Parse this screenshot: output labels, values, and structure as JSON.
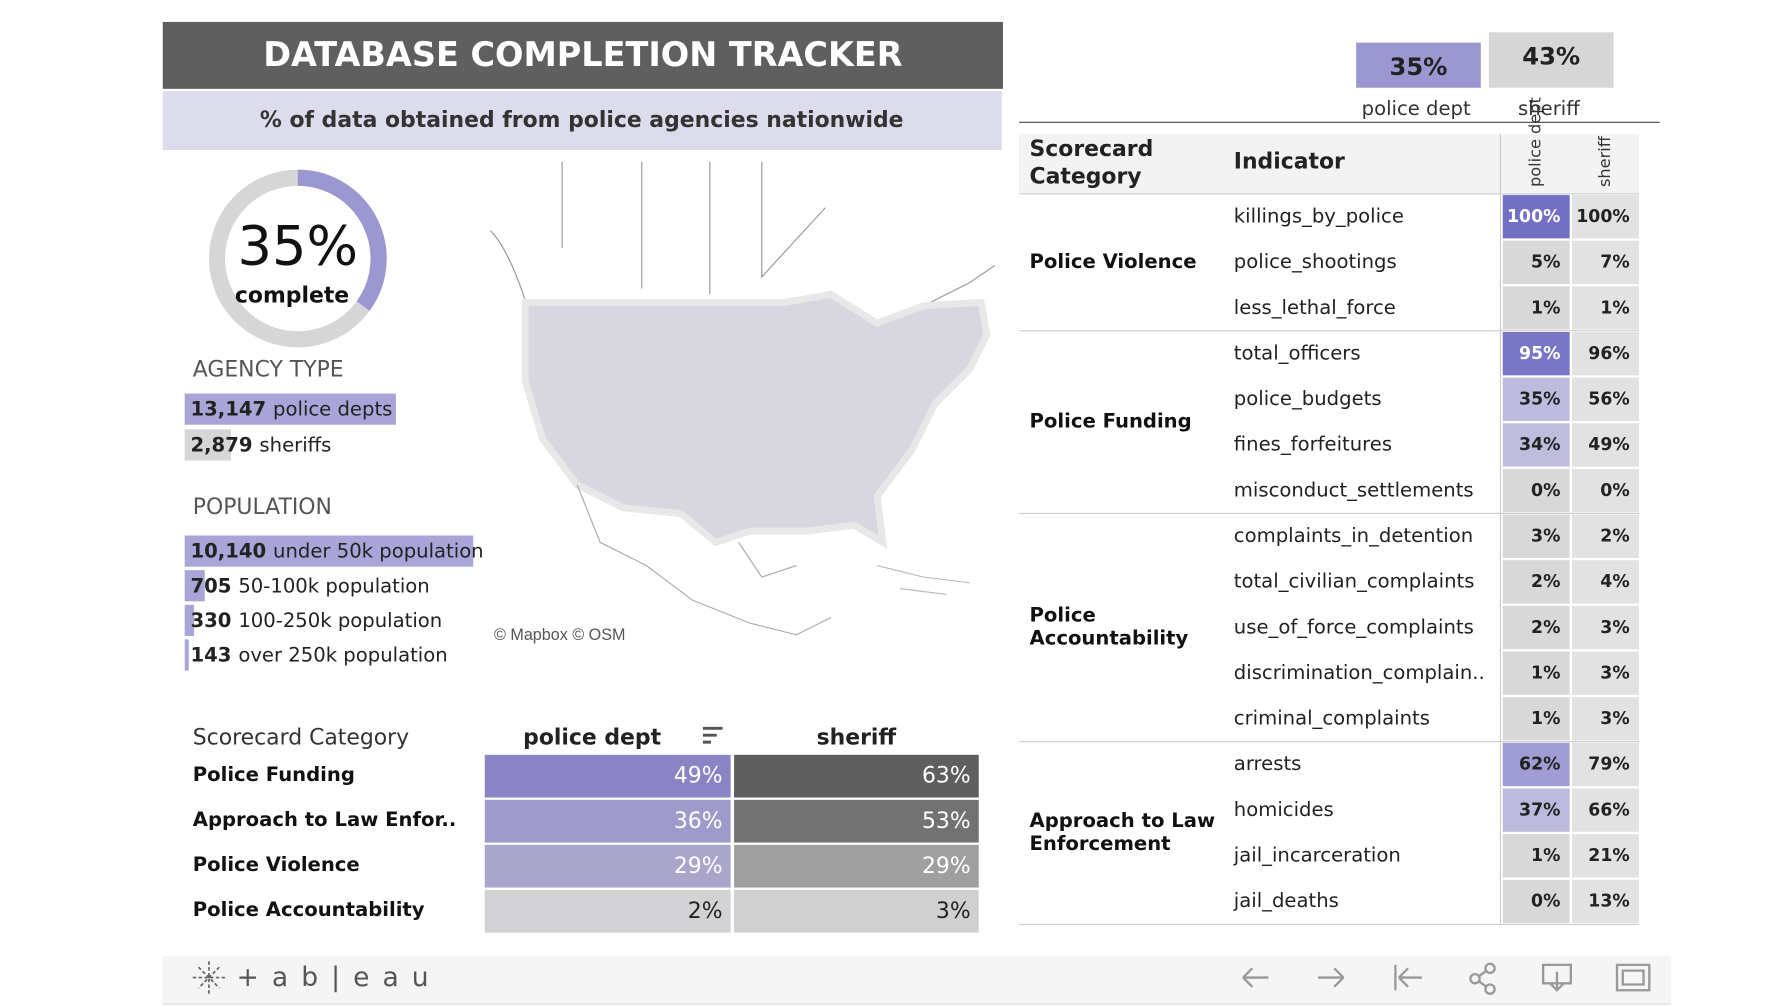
{
  "header": {
    "title": "DATABASE COMPLETION TRACKER",
    "subtitle": "% of data obtained from police agencies nationwide"
  },
  "summary": {
    "items": [
      {
        "name": "police dept",
        "value": {
          "value": 35,
          "label": "35%"
        }
      },
      {
        "name": "sheriff",
        "value": {
          "value": 43,
          "label": "43%"
        }
      }
    ]
  },
  "donut": {
    "value": {
      "value": 35,
      "label": "35%"
    },
    "caption": "complete"
  },
  "agency_type": {
    "title": "AGENCY TYPE",
    "items": [
      {
        "count": {
          "value": 13147,
          "label": "13,147"
        },
        "label": "police depts"
      },
      {
        "count": {
          "value": 2879,
          "label": "2,879"
        },
        "label": "sheriffs"
      }
    ]
  },
  "population": {
    "title": "POPULATION",
    "items": [
      {
        "count": {
          "value": 10140,
          "label": "10,140"
        },
        "label": "under 50k population"
      },
      {
        "count": {
          "value": 705,
          "label": "705"
        },
        "label": "50-100k population"
      },
      {
        "count": {
          "value": 330,
          "label": "330"
        },
        "label": "100-250k population"
      },
      {
        "count": {
          "value": 143,
          "label": "143"
        },
        "label": "over 250k population"
      }
    ]
  },
  "map": {
    "attribution": "© Mapbox  © OSM"
  },
  "category_table": {
    "headers": [
      "Scorecard Category",
      "police dept",
      "sheriff"
    ],
    "rows": [
      {
        "category": "Police Funding",
        "police": {
          "value": 49,
          "label": "49%"
        },
        "sheriff": {
          "value": 63,
          "label": "63%"
        }
      },
      {
        "category": "Approach to Law Enfor..",
        "police": {
          "value": 36,
          "label": "36%"
        },
        "sheriff": {
          "value": 53,
          "label": "53%"
        }
      },
      {
        "category": "Police Violence",
        "police": {
          "value": 29,
          "label": "29%"
        },
        "sheriff": {
          "value": 29,
          "label": "29%"
        }
      },
      {
        "category": "Police Accountability",
        "police": {
          "value": 2,
          "label": "2%"
        },
        "sheriff": {
          "value": 3,
          "label": "3%"
        }
      }
    ]
  },
  "indicator_table": {
    "headers": {
      "category": [
        "Scorecard",
        "Category"
      ],
      "indicator": "Indicator",
      "police": "police dept",
      "sheriff": "sheriff"
    },
    "groups": [
      {
        "category": [
          "Police Violence"
        ],
        "rows": [
          {
            "indicator": "killings_by_police",
            "police": {
              "value": 100,
              "label": "100%"
            },
            "sheriff": {
              "value": 100,
              "label": "100%"
            }
          },
          {
            "indicator": "police_shootings",
            "police": {
              "value": 5,
              "label": "5%"
            },
            "sheriff": {
              "value": 7,
              "label": "7%"
            }
          },
          {
            "indicator": "less_lethal_force",
            "police": {
              "value": 1,
              "label": "1%"
            },
            "sheriff": {
              "value": 1,
              "label": "1%"
            }
          }
        ]
      },
      {
        "category": [
          "Police Funding"
        ],
        "rows": [
          {
            "indicator": "total_officers",
            "police": {
              "value": 95,
              "label": "95%"
            },
            "sheriff": {
              "value": 96,
              "label": "96%"
            }
          },
          {
            "indicator": "police_budgets",
            "police": {
              "value": 35,
              "label": "35%"
            },
            "sheriff": {
              "value": 56,
              "label": "56%"
            }
          },
          {
            "indicator": "fines_forfeitures",
            "police": {
              "value": 34,
              "label": "34%"
            },
            "sheriff": {
              "value": 49,
              "label": "49%"
            }
          },
          {
            "indicator": "misconduct_settlements",
            "police": {
              "value": 0,
              "label": "0%"
            },
            "sheriff": {
              "value": 0,
              "label": "0%"
            }
          }
        ]
      },
      {
        "category": [
          "Police",
          "Accountability"
        ],
        "rows": [
          {
            "indicator": "complaints_in_detention",
            "police": {
              "value": 3,
              "label": "3%"
            },
            "sheriff": {
              "value": 2,
              "label": "2%"
            }
          },
          {
            "indicator": "total_civilian_complaints",
            "police": {
              "value": 2,
              "label": "2%"
            },
            "sheriff": {
              "value": 4,
              "label": "4%"
            }
          },
          {
            "indicator": "use_of_force_complaints",
            "police": {
              "value": 2,
              "label": "2%"
            },
            "sheriff": {
              "value": 3,
              "label": "3%"
            }
          },
          {
            "indicator": "discrimination_complain..",
            "police": {
              "value": 1,
              "label": "1%"
            },
            "sheriff": {
              "value": 3,
              "label": "3%"
            }
          },
          {
            "indicator": "criminal_complaints",
            "police": {
              "value": 1,
              "label": "1%"
            },
            "sheriff": {
              "value": 3,
              "label": "3%"
            }
          }
        ]
      },
      {
        "category": [
          "Approach to Law",
          "Enforcement"
        ],
        "rows": [
          {
            "indicator": "arrests",
            "police": {
              "value": 62,
              "label": "62%"
            },
            "sheriff": {
              "value": 79,
              "label": "79%"
            }
          },
          {
            "indicator": "homicides",
            "police": {
              "value": 37,
              "label": "37%"
            },
            "sheriff": {
              "value": 66,
              "label": "66%"
            }
          },
          {
            "indicator": "jail_incarceration",
            "police": {
              "value": 1,
              "label": "1%"
            },
            "sheriff": {
              "value": 21,
              "label": "21%"
            }
          },
          {
            "indicator": "jail_deaths",
            "police": {
              "value": 0,
              "label": "0%"
            },
            "sheriff": {
              "value": 13,
              "label": "13%"
            }
          }
        ]
      }
    ]
  },
  "footer": {
    "logo": "+ a b | e a u"
  }
}
